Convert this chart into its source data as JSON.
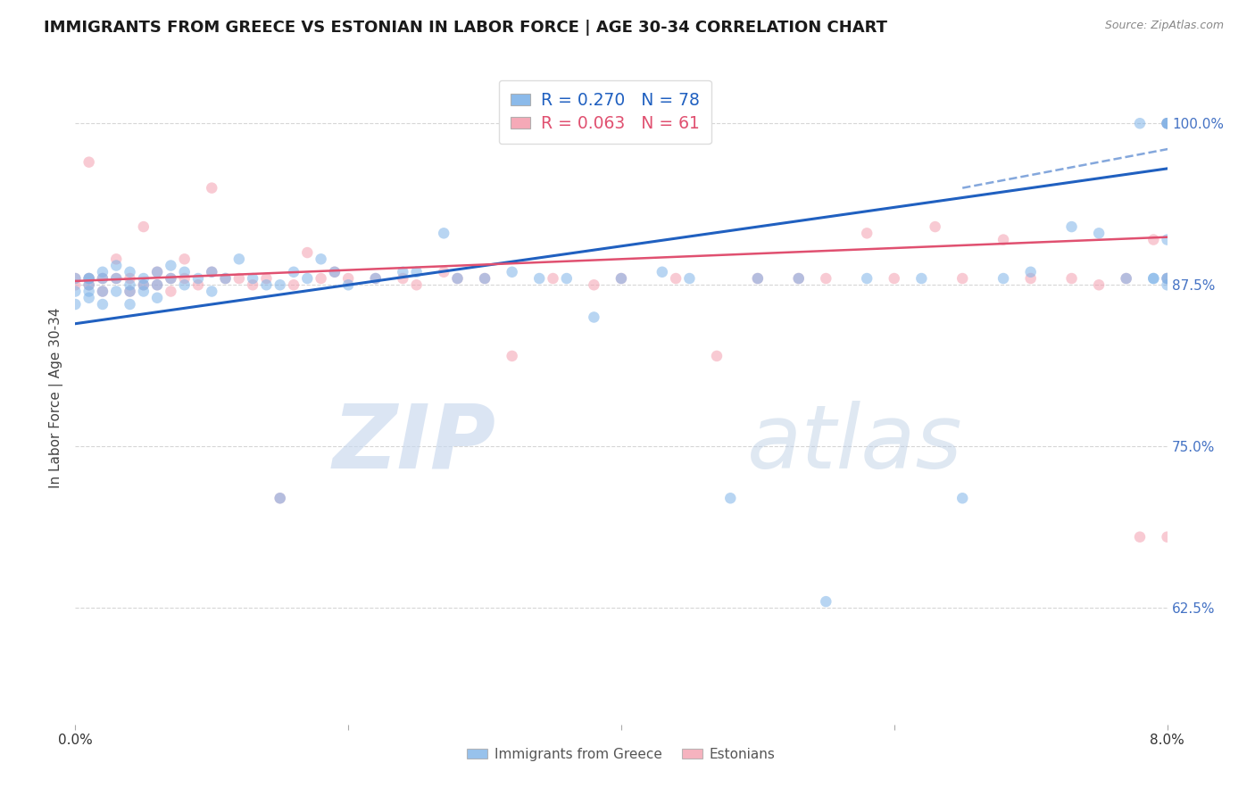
{
  "title": "IMMIGRANTS FROM GREECE VS ESTONIAN IN LABOR FORCE | AGE 30-34 CORRELATION CHART",
  "source": "Source: ZipAtlas.com",
  "ylabel": "In Labor Force | Age 30-34",
  "ytick_values": [
    0.625,
    0.75,
    0.875,
    1.0
  ],
  "xlim": [
    0.0,
    0.08
  ],
  "ylim": [
    0.535,
    1.04
  ],
  "legend_blue_label": "R = 0.270   N = 78",
  "legend_pink_label": "R = 0.063   N = 61",
  "blue_color": "#7EB3E8",
  "pink_color": "#F4A0B0",
  "blue_line_color": "#2060C0",
  "pink_line_color": "#E05070",
  "marker_size": 9,
  "marker_alpha": 0.55,
  "watermark_zip": "ZIP",
  "watermark_atlas": "atlas",
  "bottom_legend_blue": "Immigrants from Greece",
  "bottom_legend_pink": "Estonians",
  "blue_trend": [
    0.0,
    0.08,
    0.845,
    0.965
  ],
  "blue_dash": [
    0.065,
    0.095,
    0.95,
    1.01
  ],
  "pink_trend": [
    0.0,
    0.08,
    0.878,
    0.912
  ],
  "greece_scatter_x": [
    0.0,
    0.0,
    0.0,
    0.001,
    0.001,
    0.001,
    0.001,
    0.001,
    0.002,
    0.002,
    0.002,
    0.002,
    0.003,
    0.003,
    0.003,
    0.004,
    0.004,
    0.004,
    0.004,
    0.005,
    0.005,
    0.005,
    0.006,
    0.006,
    0.006,
    0.007,
    0.007,
    0.008,
    0.008,
    0.009,
    0.01,
    0.01,
    0.011,
    0.012,
    0.013,
    0.014,
    0.015,
    0.015,
    0.016,
    0.017,
    0.018,
    0.019,
    0.02,
    0.022,
    0.024,
    0.025,
    0.027,
    0.028,
    0.03,
    0.032,
    0.034,
    0.036,
    0.038,
    0.04,
    0.043,
    0.045,
    0.048,
    0.05,
    0.053,
    0.055,
    0.058,
    0.062,
    0.065,
    0.068,
    0.07,
    0.073,
    0.075,
    0.077,
    0.078,
    0.079,
    0.079,
    0.08,
    0.08,
    0.08,
    0.08,
    0.08,
    0.08,
    0.08
  ],
  "greece_scatter_y": [
    0.88,
    0.87,
    0.86,
    0.88,
    0.87,
    0.88,
    0.875,
    0.865,
    0.88,
    0.87,
    0.885,
    0.86,
    0.89,
    0.88,
    0.87,
    0.885,
    0.875,
    0.87,
    0.86,
    0.88,
    0.875,
    0.87,
    0.885,
    0.875,
    0.865,
    0.89,
    0.88,
    0.885,
    0.875,
    0.88,
    0.885,
    0.87,
    0.88,
    0.895,
    0.88,
    0.875,
    0.875,
    0.71,
    0.885,
    0.88,
    0.895,
    0.885,
    0.875,
    0.88,
    0.885,
    0.885,
    0.915,
    0.88,
    0.88,
    0.885,
    0.88,
    0.88,
    0.85,
    0.88,
    0.885,
    0.88,
    0.71,
    0.88,
    0.88,
    0.63,
    0.88,
    0.88,
    0.71,
    0.88,
    0.885,
    0.92,
    0.915,
    0.88,
    1.0,
    0.88,
    0.88,
    1.0,
    0.91,
    0.88,
    0.875,
    1.0,
    1.0,
    0.88
  ],
  "estonian_scatter_x": [
    0.0,
    0.0,
    0.001,
    0.001,
    0.001,
    0.002,
    0.002,
    0.003,
    0.003,
    0.004,
    0.004,
    0.005,
    0.005,
    0.006,
    0.006,
    0.007,
    0.007,
    0.008,
    0.008,
    0.009,
    0.01,
    0.01,
    0.011,
    0.012,
    0.013,
    0.014,
    0.015,
    0.016,
    0.017,
    0.018,
    0.019,
    0.02,
    0.022,
    0.024,
    0.025,
    0.027,
    0.028,
    0.03,
    0.032,
    0.035,
    0.038,
    0.04,
    0.044,
    0.047,
    0.05,
    0.053,
    0.055,
    0.058,
    0.06,
    0.063,
    0.065,
    0.068,
    0.07,
    0.073,
    0.075,
    0.077,
    0.078,
    0.079,
    0.08,
    0.08,
    0.08
  ],
  "estonian_scatter_y": [
    0.88,
    0.875,
    0.97,
    0.88,
    0.875,
    0.88,
    0.87,
    0.895,
    0.88,
    0.88,
    0.87,
    0.875,
    0.92,
    0.885,
    0.875,
    0.88,
    0.87,
    0.895,
    0.88,
    0.875,
    0.885,
    0.95,
    0.88,
    0.88,
    0.875,
    0.88,
    0.71,
    0.875,
    0.9,
    0.88,
    0.885,
    0.88,
    0.88,
    0.88,
    0.875,
    0.885,
    0.88,
    0.88,
    0.82,
    0.88,
    0.875,
    0.88,
    0.88,
    0.82,
    0.88,
    0.88,
    0.88,
    0.915,
    0.88,
    0.92,
    0.88,
    0.91,
    0.88,
    0.88,
    0.875,
    0.88,
    0.68,
    0.91,
    0.68,
    1.0,
    0.88
  ]
}
